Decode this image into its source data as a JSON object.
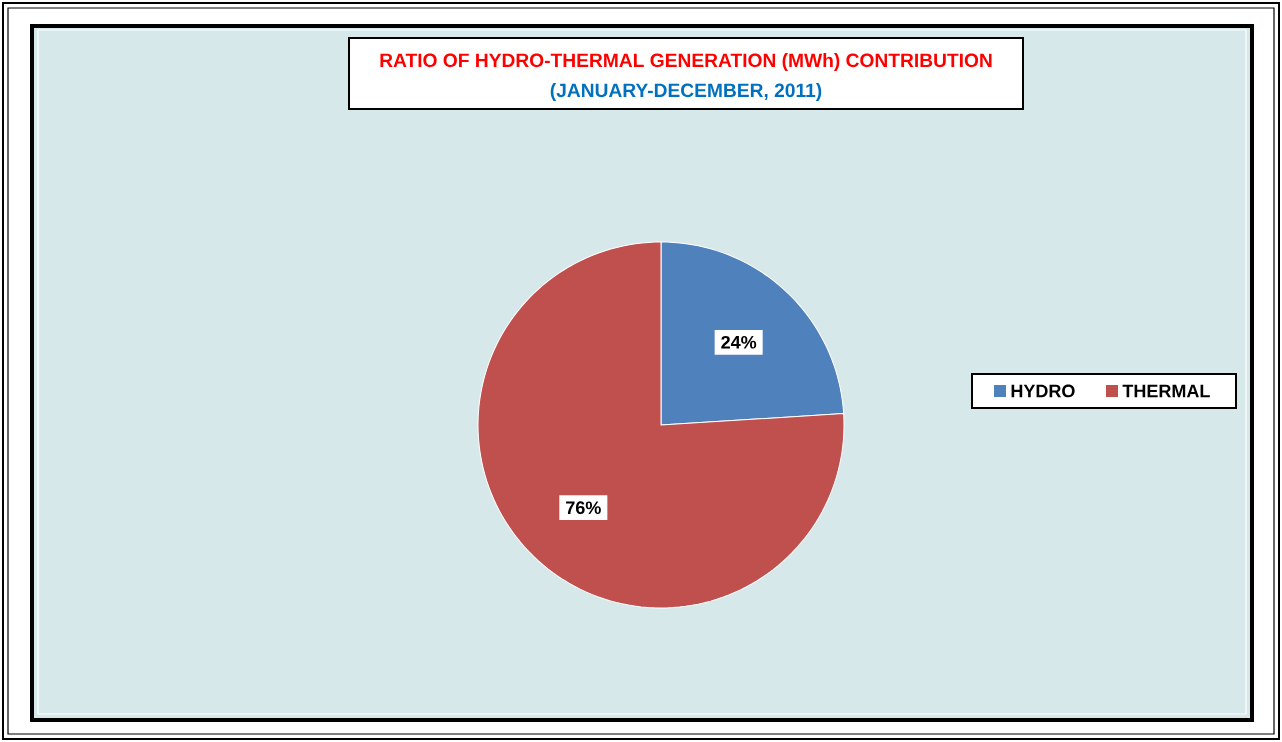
{
  "chart_data": {
    "type": "pie",
    "title": "RATIO OF HYDRO-THERMAL GENERATION (MWh) CONTRIBUTION",
    "subtitle": "(JANUARY-DECEMBER, 2011)",
    "categories": [
      "HYDRO",
      "THERMAL"
    ],
    "values": [
      24,
      76
    ],
    "colors": [
      "#4f81bd",
      "#c0504d"
    ],
    "value_labels": [
      "24%",
      "76%"
    ],
    "legend": "right"
  }
}
